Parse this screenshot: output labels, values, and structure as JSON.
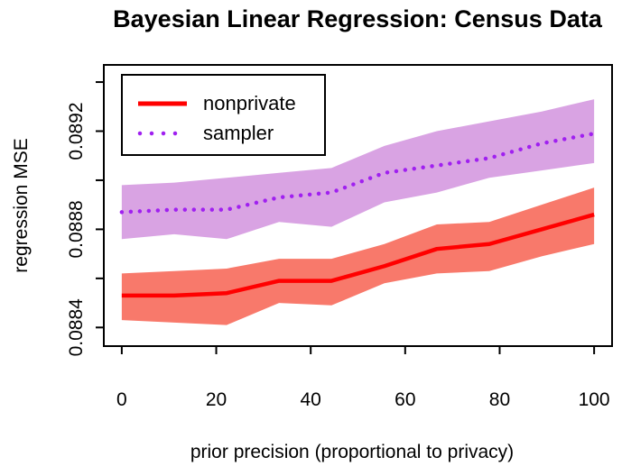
{
  "title": "Bayesian Linear Regression: Census Data",
  "colors": {
    "background": "#ffffff",
    "axis": "#000000",
    "nonprivate_line": "#ff0000",
    "nonprivate_band": "#f8796b",
    "sampler_line": "#a020f0",
    "sampler_band": "#d9a3e3"
  },
  "chart_data": {
    "type": "line",
    "title": "Bayesian Linear Regression: Census Data",
    "xlabel": "prior precision (proportional to privacy)",
    "ylabel": "regression MSE",
    "grid": false,
    "x": [
      0,
      11.1,
      22.2,
      33.3,
      44.4,
      55.6,
      66.7,
      77.8,
      88.9,
      100
    ],
    "series": [
      {
        "name": "nonprivate",
        "line_style": "solid",
        "line_color": "#ff0000",
        "band_color": "#f8796b",
        "values": [
          0.08853,
          0.08853,
          0.08854,
          0.08859,
          0.08859,
          0.08865,
          0.08872,
          0.08874,
          0.0888,
          0.08886
        ],
        "band_low": [
          0.08843,
          0.08842,
          0.08841,
          0.0885,
          0.08849,
          0.08858,
          0.08862,
          0.08863,
          0.08869,
          0.08874
        ],
        "band_high": [
          0.08862,
          0.08863,
          0.08864,
          0.08868,
          0.08868,
          0.08874,
          0.08882,
          0.08883,
          0.0889,
          0.08897
        ]
      },
      {
        "name": "sampler",
        "line_style": "dotted",
        "line_color": "#a020f0",
        "band_color": "#d9a3e3",
        "values": [
          0.08887,
          0.08888,
          0.08888,
          0.08893,
          0.08895,
          0.08903,
          0.08906,
          0.08909,
          0.08915,
          0.08919
        ],
        "band_low": [
          0.08876,
          0.08878,
          0.08876,
          0.08883,
          0.08881,
          0.08891,
          0.08895,
          0.08901,
          0.08904,
          0.08907
        ],
        "band_high": [
          0.08898,
          0.08899,
          0.08901,
          0.08903,
          0.08905,
          0.08914,
          0.0892,
          0.08924,
          0.08928,
          0.08933
        ]
      }
    ],
    "axes": {
      "xlim": [
        -3.8,
        103.8
      ],
      "ylim": [
        0.088324,
        0.08947
      ],
      "x_ticks": [
        {
          "value": 0,
          "label": "0"
        },
        {
          "value": 20,
          "label": "20"
        },
        {
          "value": 40,
          "label": "40"
        },
        {
          "value": 60,
          "label": "60"
        },
        {
          "value": 80,
          "label": "80"
        },
        {
          "value": 100,
          "label": "100"
        }
      ],
      "y_ticks": [
        {
          "value": 0.0884,
          "label": "0.0884"
        },
        {
          "value": 0.0886,
          "label": ""
        },
        {
          "value": 0.0888,
          "label": "0.0888"
        },
        {
          "value": 0.089,
          "label": ""
        },
        {
          "value": 0.0892,
          "label": "0.0892"
        },
        {
          "value": 0.0894,
          "label": ""
        }
      ]
    },
    "legend": {
      "position": "top-left",
      "entries": [
        "nonprivate",
        "sampler"
      ]
    }
  }
}
